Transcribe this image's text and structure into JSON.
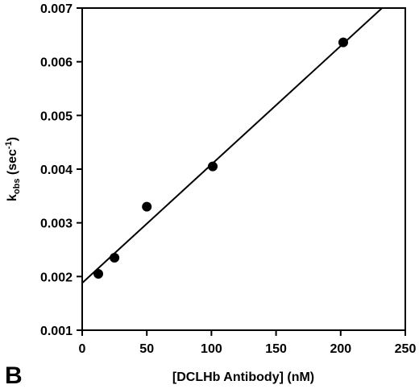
{
  "chart_data": {
    "type": "scatter",
    "panel_label": "B",
    "xlabel": "[DCLHb Antibody] (nM)",
    "ylabel": {
      "main": "k",
      "sub": "obs",
      "unit": " (sec",
      "sup": "-1",
      "close": ")"
    },
    "xlim": [
      0,
      250
    ],
    "ylim": [
      0.001,
      0.007
    ],
    "x_ticks": [
      0,
      50,
      100,
      150,
      200,
      250
    ],
    "y_ticks": [
      0.001,
      0.002,
      0.003,
      0.004,
      0.005,
      0.006,
      0.007
    ],
    "x_tick_labels": [
      "0",
      "50",
      "100",
      "150",
      "200",
      "250"
    ],
    "y_tick_labels": [
      "0.001",
      "0.002",
      "0.003",
      "0.004",
      "0.005",
      "0.006",
      "0.007"
    ],
    "points": [
      {
        "x": 12.5,
        "y": 0.00205
      },
      {
        "x": 25,
        "y": 0.00235
      },
      {
        "x": 50,
        "y": 0.0033
      },
      {
        "x": 101,
        "y": 0.00405
      },
      {
        "x": 202,
        "y": 0.00636
      }
    ],
    "fit_line": {
      "x_start": 0,
      "y_start": 0.00188,
      "x_end": 232,
      "y_end": 0.007
    },
    "grid": false,
    "legend": "none"
  }
}
